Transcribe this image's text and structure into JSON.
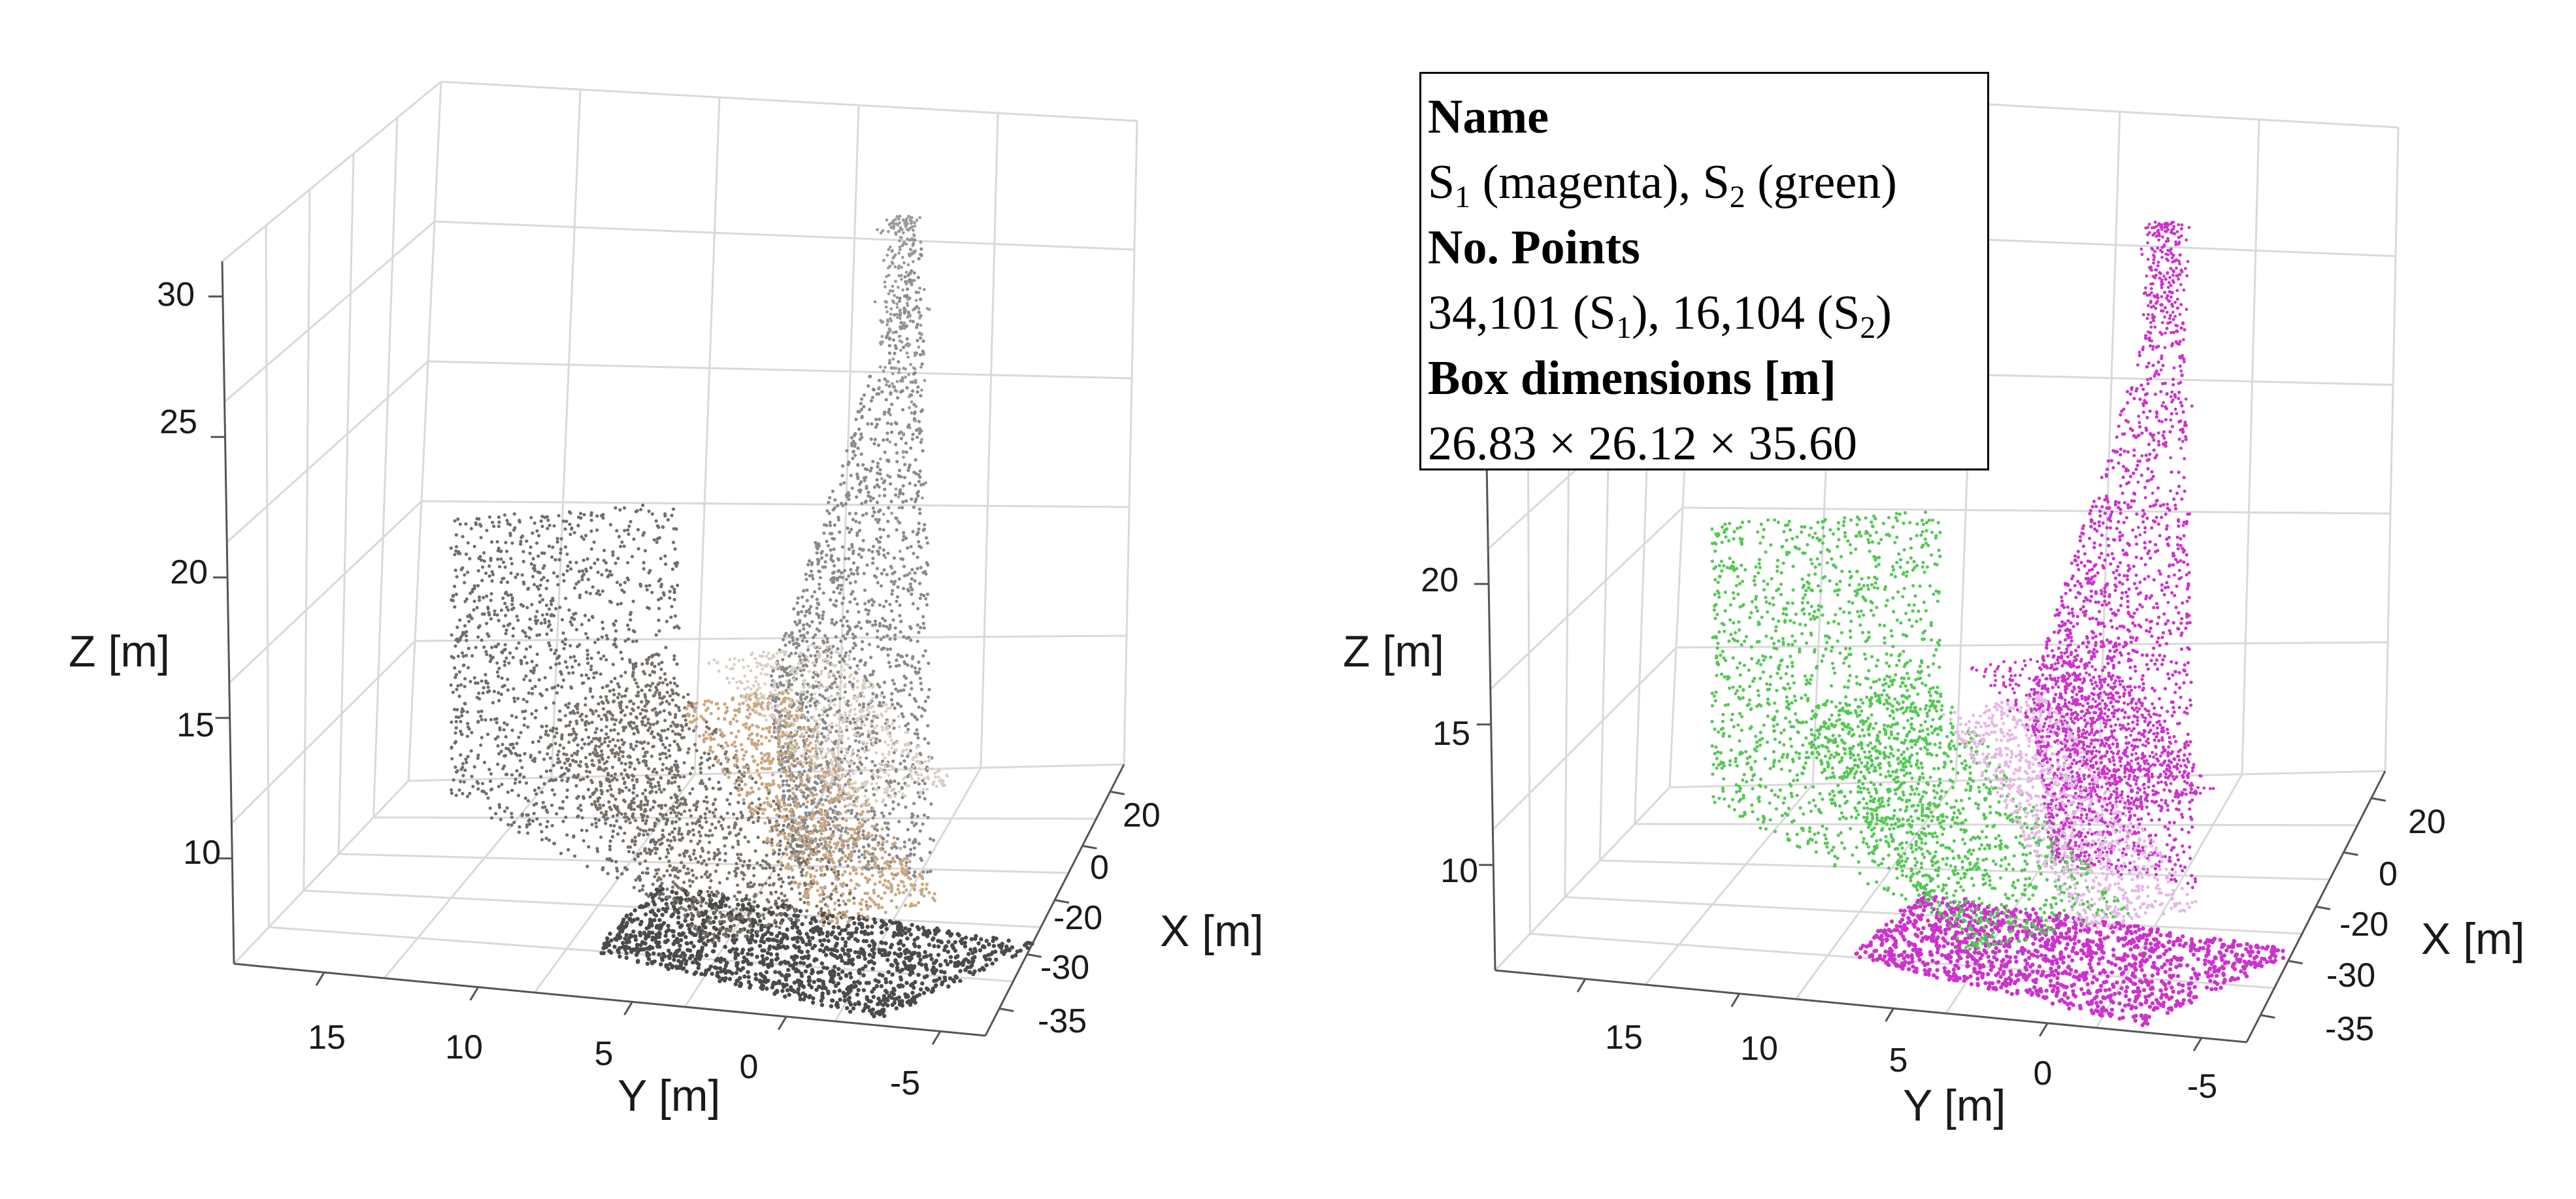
{
  "chart_data": [
    {
      "type": "scatter",
      "variant": "3d-point-cloud",
      "coloring": "rgb",
      "xlabel": "X [m]",
      "ylabel": "Y [m]",
      "zlabel": "Z [m]",
      "x_ticks": [
        "20",
        "0",
        "-20",
        "-30",
        "-35"
      ],
      "y_ticks": [
        "15",
        "10",
        "5",
        "0",
        "-5"
      ],
      "z_ticks": [
        "30",
        "25",
        "20",
        "15",
        "10"
      ],
      "grid": true,
      "colors": {
        "points": "#6e6e6e",
        "facade": "#8a8a8a",
        "ground": "#4a4a4a",
        "stairs": "#c9a882",
        "grid": "#d9d9d9",
        "axis": "#555555"
      }
    },
    {
      "type": "scatter",
      "variant": "3d-point-cloud",
      "coloring": "segment",
      "xlabel": "X [m]",
      "ylabel": "Y [m]",
      "zlabel": "Z [m]",
      "x_ticks": [
        "20",
        "0",
        "-20",
        "-30",
        "-35"
      ],
      "y_ticks": [
        "15",
        "10",
        "5",
        "0",
        "-5"
      ],
      "z_ticks": [
        "20",
        "15",
        "10"
      ],
      "grid": true,
      "colors": {
        "S1": "#cc33cc",
        "S2": "#55c855",
        "grid": "#d9d9d9",
        "axis": "#555555"
      }
    }
  ],
  "info_box": {
    "name_heading": "Name",
    "name_s1": "S",
    "name_s1_sub": "1",
    "name_s1_rest": " (magenta), ",
    "name_s2": "S",
    "name_s2_sub": "2",
    "name_s2_rest": " (green)",
    "points_heading": "No. Points",
    "points_s1": "34,101 (S",
    "points_s1_sub": "1",
    "points_mid": "), 16,104 (S",
    "points_s2_sub": "2",
    "points_end": ")",
    "box_heading": "Box dimensions [m]",
    "box_value": "26.83 × 26.12 × 35.60"
  }
}
